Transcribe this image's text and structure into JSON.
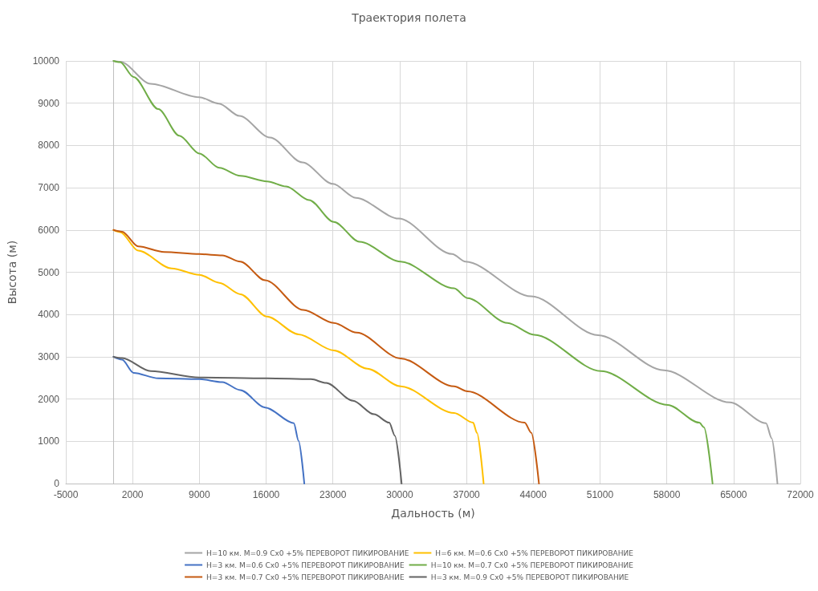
{
  "chart_data": {
    "type": "line",
    "title": "Траектория полета",
    "xlabel": "Дальность (м)",
    "ylabel": "Высота (м)",
    "xlim": [
      -5000,
      72000
    ],
    "xticks": [
      -5000,
      2000,
      9000,
      16000,
      23000,
      30000,
      37000,
      44000,
      51000,
      58000,
      65000,
      72000
    ],
    "ylim": [
      0,
      10000
    ],
    "yticks": [
      0,
      1000,
      2000,
      3000,
      4000,
      5000,
      6000,
      7000,
      8000,
      9000,
      10000
    ],
    "grid": true,
    "legend": "bottom",
    "marker": "none",
    "line_style": "solid",
    "series": [
      {
        "name": "H=10 км. M=0.9 Cx0 +5% ПЕРЕВОРОТ ПИКИРОВАНИЕ",
        "color": "#a5a5a5",
        "x": [
          0,
          700,
          3900,
          9000,
          11050,
          13200,
          16400,
          19800,
          23000,
          25400,
          29900,
          35500,
          36900,
          43800,
          50800,
          57700,
          64600,
          68400,
          69000,
          69600
        ],
        "values": [
          10000,
          9980,
          9460,
          9140,
          8990,
          8700,
          8190,
          7600,
          7090,
          6760,
          6270,
          5430,
          5250,
          4430,
          3510,
          2680,
          1920,
          1430,
          1070,
          0
        ]
      },
      {
        "name": "H=6 км. M=0.6 Cx0 +5% ПЕРЕВОРОТ ПИКИРОВАНИЕ",
        "color": "#ffc000",
        "x": [
          0,
          700,
          2600,
          6100,
          9000,
          11100,
          13300,
          16100,
          19400,
          23100,
          26600,
          30100,
          35700,
          37700,
          38100,
          38800
        ],
        "values": [
          6000,
          5950,
          5510,
          5090,
          4940,
          4750,
          4480,
          3950,
          3530,
          3150,
          2720,
          2300,
          1670,
          1440,
          1200,
          0
        ]
      },
      {
        "name": "H=3 км. M=0.6 Cx0 +5% ПЕРЕВОРОТ ПИКИРОВАНИЕ",
        "color": "#4472c4",
        "x": [
          0,
          900,
          2100,
          4700,
          9000,
          11400,
          13300,
          15900,
          18900,
          19400,
          20000
        ],
        "values": [
          3000,
          2930,
          2620,
          2490,
          2470,
          2400,
          2210,
          1800,
          1430,
          1010,
          0
        ]
      },
      {
        "name": "H=10 км. M=0.7 Cx0 +5% ПЕРЕВОРОТ ПИКИРОВАНИЕ",
        "color": "#70ad47",
        "x": [
          0,
          700,
          2100,
          4700,
          6900,
          9000,
          11100,
          13300,
          16100,
          18100,
          20500,
          23100,
          25800,
          30100,
          35700,
          37100,
          41300,
          44100,
          51100,
          58100,
          61400,
          61900,
          62800
        ],
        "values": [
          10000,
          9970,
          9620,
          8860,
          8230,
          7810,
          7470,
          7280,
          7150,
          7030,
          6710,
          6190,
          5720,
          5250,
          4620,
          4390,
          3800,
          3520,
          2660,
          1860,
          1440,
          1330,
          0
        ]
      },
      {
        "name": "H=3 км. M=0.7 Cx0 +5% ПЕРЕВОРОТ ПИКИРОВАНИЕ",
        "color": "#c55a11",
        "x": [
          0,
          900,
          2600,
          5300,
          9000,
          11400,
          13300,
          15900,
          19900,
          23100,
          25500,
          30100,
          35700,
          37100,
          43100,
          43800,
          44600
        ],
        "values": [
          6000,
          5960,
          5610,
          5480,
          5430,
          5400,
          5250,
          4810,
          4110,
          3800,
          3570,
          2960,
          2300,
          2180,
          1440,
          1200,
          0
        ]
      },
      {
        "name": "H=3 км. M=0.9 Cx0 +5% ПЕРЕВОРОТ ПИКИРОВАНИЕ",
        "color": "#636363",
        "x": [
          0,
          900,
          3900,
          9000,
          16100,
          20700,
          22300,
          25100,
          27300,
          28900,
          29500,
          30200
        ],
        "values": [
          3000,
          2970,
          2660,
          2510,
          2490,
          2470,
          2380,
          1960,
          1640,
          1440,
          1130,
          0
        ]
      }
    ]
  }
}
